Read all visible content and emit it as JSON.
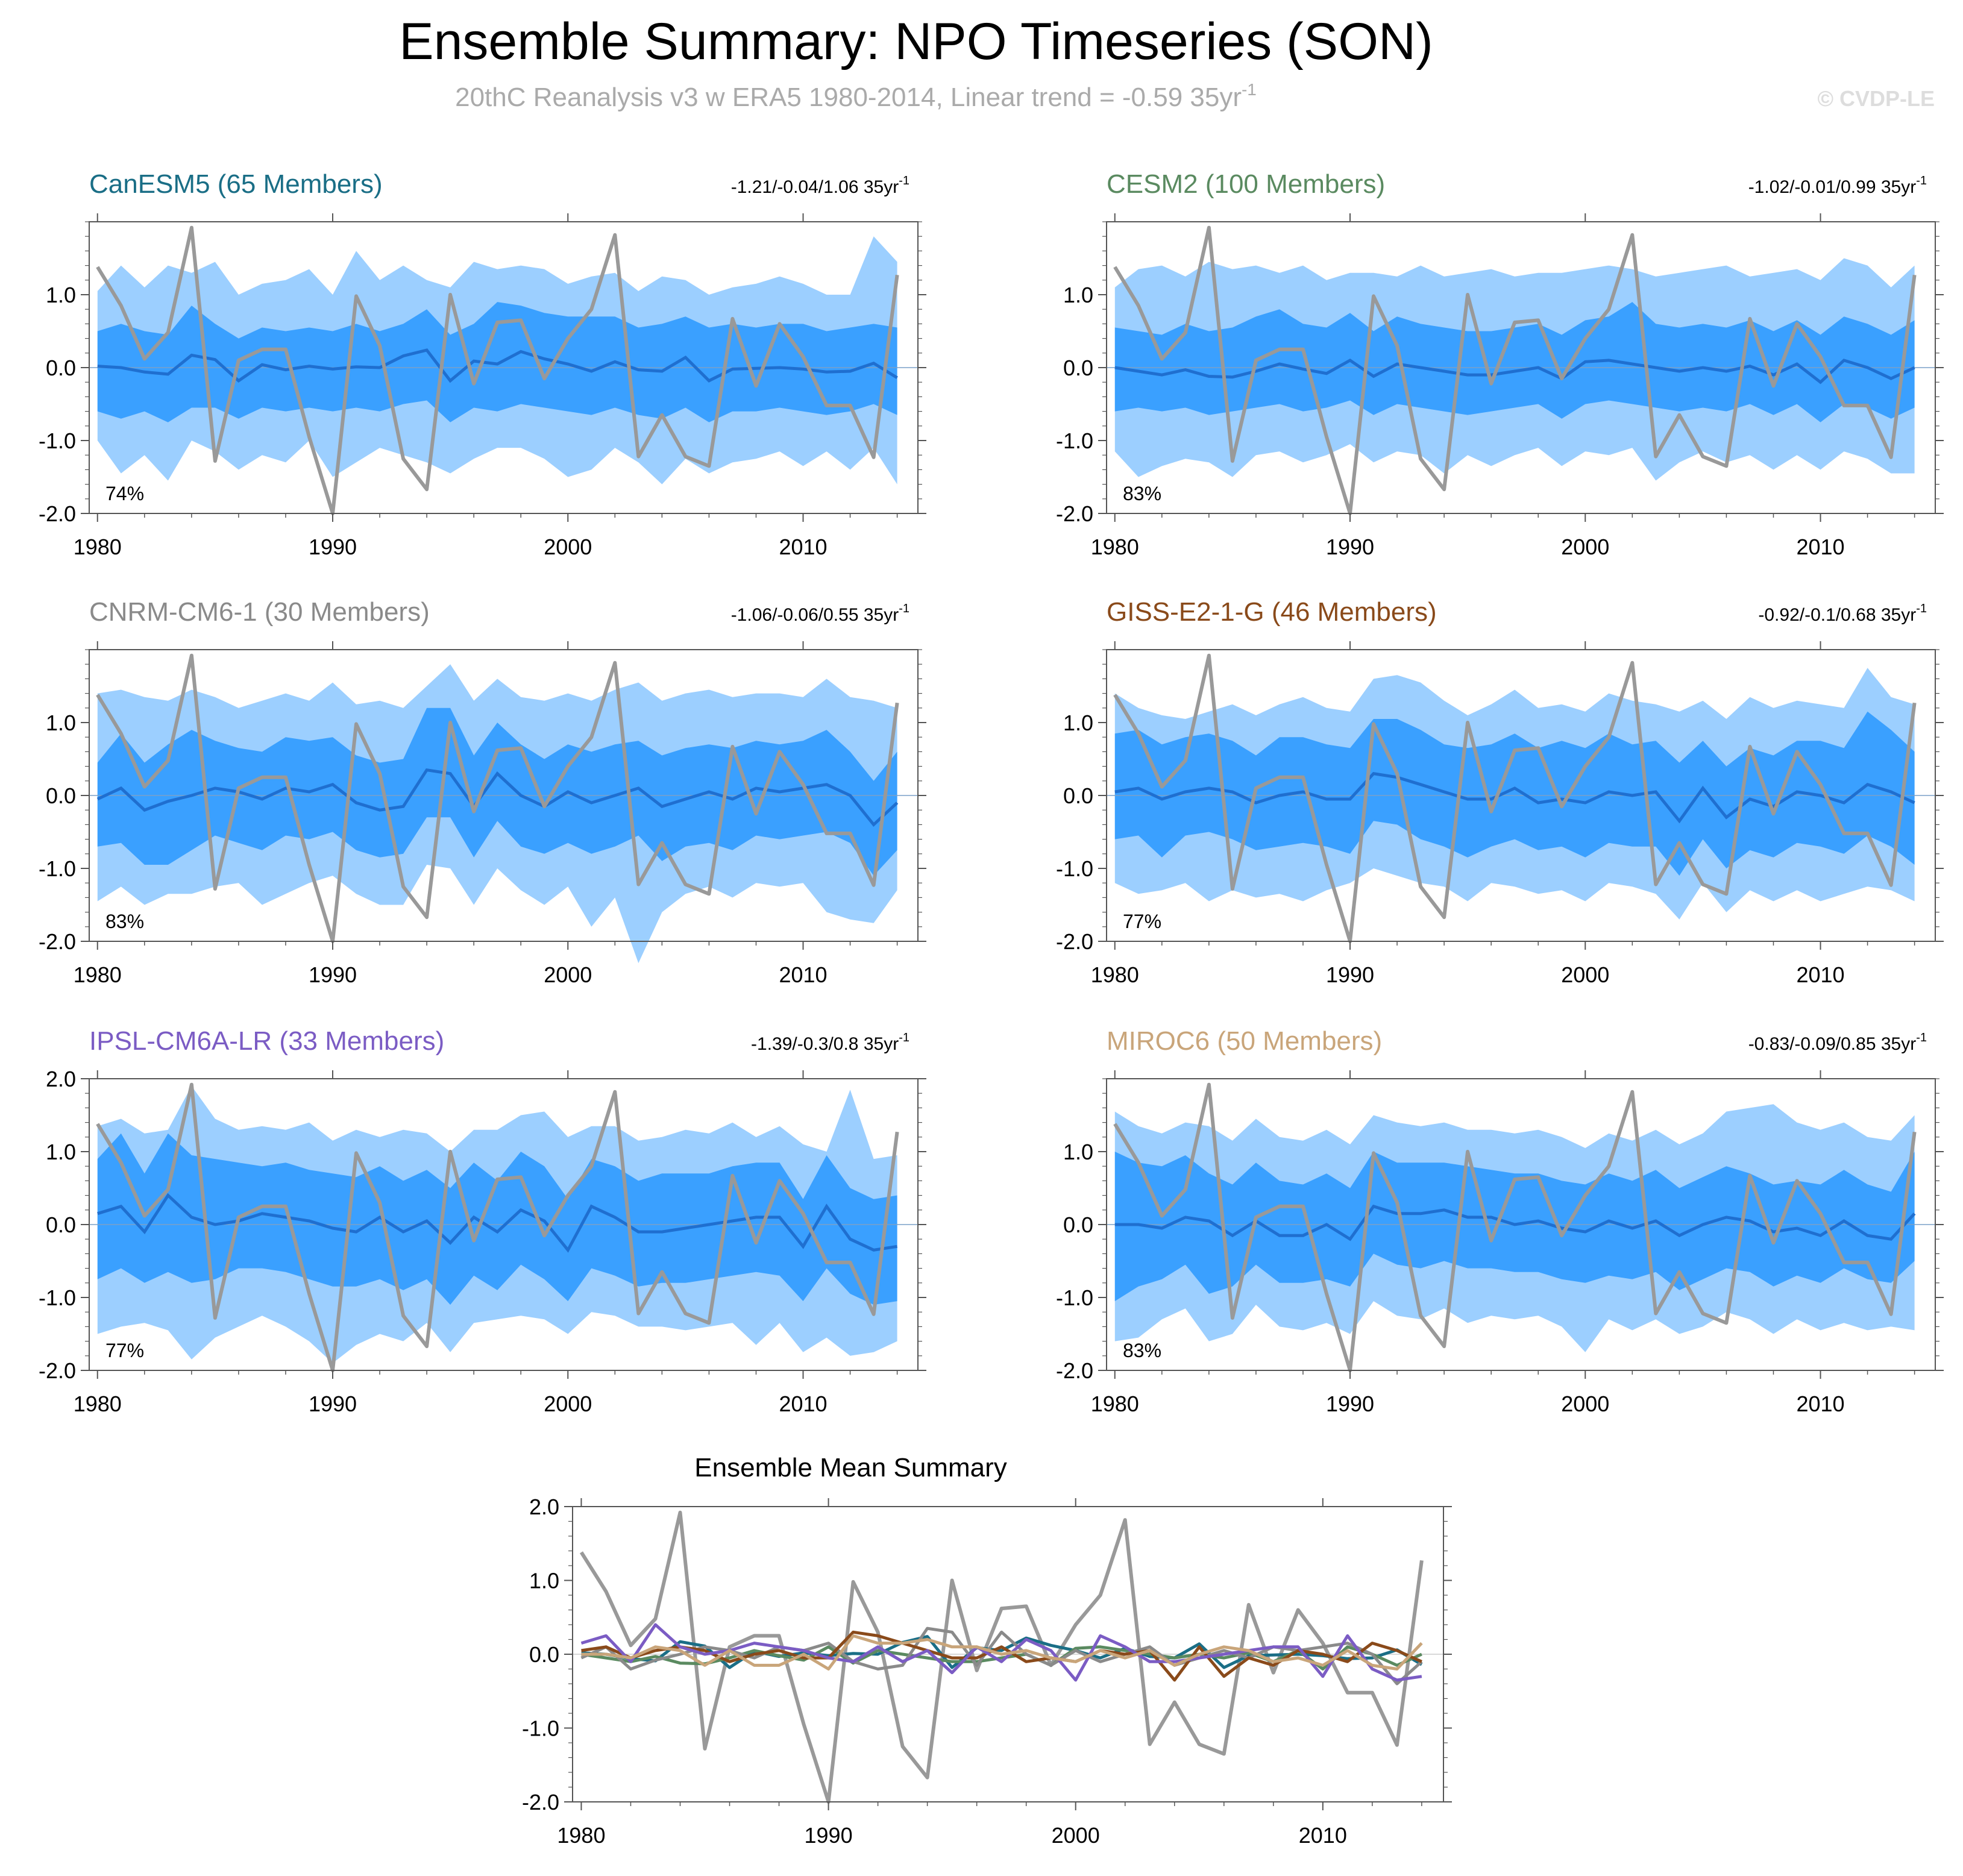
{
  "figure": {
    "title": "Ensemble Summary: NPO Timeseries (SON)",
    "subtitle": "20thC Reanalysis v3 w ERA5 1980-2014, Linear trend = -0.59 35yr",
    "subtitle_sup": "-1",
    "watermark": "© CVDP-LE"
  },
  "colors": {
    "outer_band": "#9ccfff",
    "inner_band": "#3aa0ff",
    "ens_mean": "#1f6fd0",
    "observed": "#999999",
    "axis": "#555555"
  },
  "chart_data": [
    {
      "id": "canesm5",
      "type": "area",
      "title": "CanESM5 (65 Members)",
      "title_color": "#1a6e86",
      "trend": "-1.21/-0.04/1.06 35yr",
      "trend_sup": "-1",
      "pct": "74%",
      "x_start": 1980,
      "xticks": [
        "1980",
        "1990",
        "2000",
        "2010"
      ],
      "yticks": [
        "1.0",
        "0.0",
        "-1.0",
        "-2.0"
      ],
      "ylim": [
        -2.0,
        2.0
      ],
      "mean": [
        0.02,
        0.0,
        -0.06,
        -0.09,
        0.17,
        0.11,
        -0.18,
        0.04,
        -0.03,
        0.02,
        -0.02,
        0.01,
        0.0,
        0.16,
        0.24,
        -0.18,
        0.09,
        0.05,
        0.22,
        0.12,
        0.05,
        -0.05,
        0.08,
        -0.03,
        -0.05,
        0.14,
        -0.18,
        -0.02,
        -0.01,
        0.0,
        -0.02,
        -0.06,
        -0.05,
        0.06,
        -0.14
      ],
      "p25": [
        -0.6,
        -0.7,
        -0.6,
        -0.75,
        -0.55,
        -0.55,
        -0.7,
        -0.55,
        -0.6,
        -0.55,
        -0.6,
        -0.55,
        -0.6,
        -0.5,
        -0.45,
        -0.75,
        -0.55,
        -0.6,
        -0.5,
        -0.55,
        -0.6,
        -0.65,
        -0.55,
        -0.65,
        -0.7,
        -0.55,
        -0.75,
        -0.6,
        -0.6,
        -0.55,
        -0.6,
        -0.65,
        -0.6,
        -0.5,
        -0.65
      ],
      "p75": [
        0.5,
        0.6,
        0.5,
        0.45,
        0.85,
        0.6,
        0.4,
        0.55,
        0.5,
        0.55,
        0.5,
        0.6,
        0.5,
        0.6,
        0.8,
        0.45,
        0.6,
        0.9,
        0.85,
        0.75,
        0.7,
        0.7,
        0.7,
        0.55,
        0.6,
        0.7,
        0.55,
        0.6,
        0.55,
        0.6,
        0.6,
        0.5,
        0.55,
        0.6,
        0.55
      ],
      "p5": [
        -1.0,
        -1.45,
        -1.2,
        -1.55,
        -1.0,
        -1.15,
        -1.4,
        -1.2,
        -1.3,
        -1.0,
        -1.5,
        -1.3,
        -1.1,
        -1.2,
        -1.3,
        -1.45,
        -1.25,
        -1.1,
        -1.1,
        -1.25,
        -1.5,
        -1.4,
        -1.1,
        -1.3,
        -1.6,
        -1.25,
        -1.45,
        -1.3,
        -1.25,
        -1.15,
        -1.35,
        -1.15,
        -1.4,
        -1.1,
        -1.6
      ],
      "p95": [
        1.05,
        1.4,
        1.1,
        1.4,
        1.3,
        1.45,
        1.0,
        1.15,
        1.2,
        1.35,
        1.0,
        1.6,
        1.2,
        1.4,
        1.2,
        1.1,
        1.45,
        1.35,
        1.4,
        1.35,
        1.15,
        1.25,
        1.3,
        1.05,
        1.25,
        1.2,
        1.0,
        1.1,
        1.15,
        1.25,
        1.15,
        1.0,
        1.0,
        1.8,
        1.45
      ]
    },
    {
      "id": "cesm2",
      "type": "area",
      "title": "CESM2 (100 Members)",
      "title_color": "#5a8a60",
      "trend": "-1.02/-0.01/0.99 35yr",
      "trend_sup": "-1",
      "pct": "83%",
      "x_start": 1980,
      "xticks": [
        "1980",
        "1990",
        "2000",
        "2010"
      ],
      "yticks": [
        "1.0",
        "0.0",
        "-1.0",
        "-2.0"
      ],
      "ylim": [
        -2.0,
        2.0
      ],
      "mean": [
        0.0,
        -0.05,
        -0.1,
        -0.03,
        -0.12,
        -0.13,
        -0.05,
        0.05,
        -0.02,
        -0.08,
        0.1,
        -0.12,
        0.05,
        0.0,
        -0.05,
        -0.1,
        -0.1,
        -0.05,
        0.0,
        -0.15,
        0.08,
        0.1,
        0.05,
        0.0,
        -0.05,
        0.0,
        -0.05,
        0.02,
        -0.1,
        0.05,
        -0.2,
        0.1,
        0.0,
        -0.15,
        0.0
      ],
      "p25": [
        -0.6,
        -0.55,
        -0.6,
        -0.55,
        -0.65,
        -0.6,
        -0.55,
        -0.5,
        -0.6,
        -0.55,
        -0.45,
        -0.65,
        -0.5,
        -0.55,
        -0.6,
        -0.65,
        -0.6,
        -0.55,
        -0.5,
        -0.7,
        -0.5,
        -0.45,
        -0.5,
        -0.55,
        -0.6,
        -0.55,
        -0.6,
        -0.5,
        -0.65,
        -0.5,
        -0.75,
        -0.5,
        -0.55,
        -0.7,
        -0.55
      ],
      "p75": [
        0.55,
        0.5,
        0.45,
        0.6,
        0.5,
        0.55,
        0.7,
        0.8,
        0.6,
        0.55,
        0.75,
        0.5,
        0.7,
        0.6,
        0.55,
        0.5,
        0.5,
        0.55,
        0.6,
        0.45,
        0.65,
        0.7,
        0.9,
        0.6,
        0.55,
        0.6,
        0.55,
        0.65,
        0.5,
        0.65,
        0.45,
        0.7,
        0.6,
        0.45,
        0.65
      ],
      "p5": [
        -1.15,
        -1.5,
        -1.35,
        -1.25,
        -1.3,
        -1.5,
        -1.2,
        -1.15,
        -1.3,
        -1.2,
        -1.05,
        -1.3,
        -1.15,
        -1.2,
        -1.45,
        -1.2,
        -1.35,
        -1.2,
        -1.1,
        -1.35,
        -1.15,
        -1.2,
        -1.1,
        -1.55,
        -1.3,
        -1.15,
        -1.3,
        -1.2,
        -1.4,
        -1.2,
        -1.4,
        -1.15,
        -1.25,
        -1.45,
        -1.45
      ],
      "p95": [
        1.1,
        1.35,
        1.4,
        1.25,
        1.45,
        1.35,
        1.4,
        1.3,
        1.4,
        1.2,
        1.3,
        1.3,
        1.25,
        1.4,
        1.25,
        1.3,
        1.35,
        1.25,
        1.3,
        1.3,
        1.35,
        1.4,
        1.35,
        1.25,
        1.3,
        1.35,
        1.4,
        1.25,
        1.3,
        1.35,
        1.2,
        1.5,
        1.4,
        1.1,
        1.4
      ]
    },
    {
      "id": "cnrm",
      "type": "area",
      "title": "CNRM-CM6-1 (30 Members)",
      "title_color": "#8a8a8a",
      "trend": "-1.06/-0.06/0.55 35yr",
      "trend_sup": "-1",
      "pct": "83%",
      "x_start": 1980,
      "xticks": [
        "1980",
        "1990",
        "2000",
        "2010"
      ],
      "yticks": [
        "1.0",
        "0.0",
        "-1.0",
        "-2.0"
      ],
      "ylim": [
        -2.0,
        2.0
      ],
      "mean": [
        -0.05,
        0.1,
        -0.2,
        -0.08,
        0.0,
        0.1,
        0.05,
        -0.05,
        0.1,
        0.05,
        0.15,
        -0.1,
        -0.2,
        -0.15,
        0.35,
        0.3,
        -0.15,
        0.3,
        0.0,
        -0.15,
        0.05,
        -0.1,
        0.0,
        0.1,
        -0.15,
        -0.05,
        0.05,
        -0.05,
        0.1,
        0.05,
        0.1,
        0.15,
        0.0,
        -0.4,
        -0.1
      ],
      "p25": [
        -0.7,
        -0.65,
        -0.95,
        -0.95,
        -0.75,
        -0.55,
        -0.65,
        -0.75,
        -0.55,
        -0.6,
        -0.5,
        -0.75,
        -0.85,
        -0.8,
        -0.3,
        -0.3,
        -0.85,
        -0.35,
        -0.7,
        -0.8,
        -0.65,
        -0.8,
        -0.7,
        -0.55,
        -0.9,
        -0.7,
        -0.65,
        -0.75,
        -0.55,
        -0.6,
        -0.55,
        -0.5,
        -0.65,
        -1.1,
        -0.75
      ],
      "p75": [
        0.45,
        0.85,
        0.45,
        0.7,
        0.9,
        0.75,
        0.65,
        0.6,
        0.8,
        0.75,
        0.8,
        0.55,
        0.45,
        0.5,
        1.2,
        1.2,
        0.55,
        1.0,
        0.7,
        0.5,
        0.7,
        0.6,
        0.7,
        0.75,
        0.55,
        0.65,
        0.7,
        0.65,
        0.75,
        0.7,
        0.75,
        0.9,
        0.6,
        0.2,
        0.6
      ],
      "p5": [
        -1.45,
        -1.25,
        -1.5,
        -1.35,
        -1.35,
        -1.25,
        -1.2,
        -1.5,
        -1.35,
        -1.2,
        -1.1,
        -1.35,
        -1.5,
        -1.5,
        -0.95,
        -1.0,
        -1.5,
        -1.0,
        -1.3,
        -1.5,
        -1.25,
        -1.8,
        -1.4,
        -2.3,
        -1.6,
        -1.35,
        -1.25,
        -1.4,
        -1.2,
        -1.25,
        -1.2,
        -1.6,
        -1.7,
        -1.75,
        -1.3
      ],
      "p95": [
        1.4,
        1.45,
        1.35,
        1.3,
        1.45,
        1.35,
        1.2,
        1.3,
        1.4,
        1.3,
        1.55,
        1.25,
        1.3,
        1.2,
        1.5,
        1.8,
        1.3,
        1.6,
        1.35,
        1.3,
        1.4,
        1.3,
        1.45,
        1.55,
        1.3,
        1.4,
        1.45,
        1.35,
        1.4,
        1.4,
        1.35,
        1.6,
        1.35,
        1.3,
        1.2
      ]
    },
    {
      "id": "giss",
      "type": "area",
      "title": "GISS-E2-1-G (46 Members)",
      "title_color": "#8a4a1a",
      "trend": "-0.92/-0.1/0.68 35yr",
      "trend_sup": "-1",
      "pct": "77%",
      "x_start": 1980,
      "xticks": [
        "1980",
        "1990",
        "2000",
        "2010"
      ],
      "yticks": [
        "1.0",
        "0.0",
        "-1.0",
        "-2.0"
      ],
      "ylim": [
        -2.0,
        2.0
      ],
      "mean": [
        0.05,
        0.1,
        -0.05,
        0.05,
        0.1,
        0.05,
        -0.1,
        0.0,
        0.05,
        -0.05,
        -0.05,
        0.3,
        0.25,
        0.15,
        0.05,
        -0.05,
        -0.05,
        0.1,
        -0.1,
        -0.05,
        -0.1,
        0.05,
        0.0,
        0.05,
        -0.35,
        0.1,
        -0.3,
        -0.05,
        -0.15,
        0.05,
        0.0,
        -0.1,
        0.15,
        0.05,
        -0.1
      ],
      "p25": [
        -0.6,
        -0.55,
        -0.85,
        -0.55,
        -0.5,
        -0.6,
        -0.75,
        -0.7,
        -0.65,
        -0.7,
        -0.8,
        -0.35,
        -0.4,
        -0.6,
        -0.7,
        -0.85,
        -0.7,
        -0.6,
        -0.75,
        -0.7,
        -0.85,
        -0.65,
        -0.7,
        -0.7,
        -1.1,
        -0.6,
        -1.0,
        -0.75,
        -0.85,
        -0.65,
        -0.7,
        -0.8,
        -0.55,
        -0.7,
        -0.95
      ],
      "p75": [
        0.85,
        0.9,
        0.7,
        0.8,
        0.85,
        0.75,
        0.55,
        0.8,
        0.8,
        0.7,
        0.65,
        1.05,
        1.05,
        0.9,
        0.7,
        0.65,
        0.7,
        0.85,
        0.65,
        0.75,
        0.65,
        0.85,
        0.7,
        0.75,
        0.45,
        0.75,
        0.4,
        0.65,
        0.55,
        0.75,
        0.75,
        0.65,
        1.15,
        0.9,
        0.6
      ],
      "p5": [
        -1.2,
        -1.35,
        -1.3,
        -1.2,
        -1.45,
        -1.3,
        -1.4,
        -1.35,
        -1.45,
        -1.3,
        -1.2,
        -1.0,
        -1.1,
        -1.2,
        -1.25,
        -1.45,
        -1.2,
        -1.25,
        -1.35,
        -1.3,
        -1.45,
        -1.2,
        -1.25,
        -1.35,
        -1.7,
        -1.2,
        -1.6,
        -1.3,
        -1.45,
        -1.3,
        -1.45,
        -1.35,
        -1.25,
        -1.3,
        -1.45
      ],
      "p95": [
        1.4,
        1.2,
        1.1,
        1.05,
        1.15,
        1.25,
        1.1,
        1.25,
        1.35,
        1.2,
        1.15,
        1.6,
        1.65,
        1.55,
        1.3,
        1.1,
        1.25,
        1.45,
        1.2,
        1.25,
        1.15,
        1.4,
        1.3,
        1.25,
        1.15,
        1.3,
        1.05,
        1.35,
        1.2,
        1.3,
        1.25,
        1.2,
        1.75,
        1.35,
        1.25
      ]
    },
    {
      "id": "ipsl",
      "type": "area",
      "title": "IPSL-CM6A-LR (33 Members)",
      "title_color": "#7b5cc4",
      "trend": "-1.39/-0.3/0.8 35yr",
      "trend_sup": "-1",
      "pct": "77%",
      "x_start": 1980,
      "xticks": [
        "1980",
        "1990",
        "2000",
        "2010"
      ],
      "yticks": [
        "2.0",
        "1.0",
        "0.0",
        "-1.0",
        "-2.0"
      ],
      "ylim": [
        -2.0,
        2.0
      ],
      "mean": [
        0.15,
        0.25,
        -0.1,
        0.4,
        0.1,
        0.0,
        0.05,
        0.15,
        0.1,
        0.05,
        -0.05,
        -0.1,
        0.1,
        -0.1,
        0.05,
        -0.25,
        0.1,
        -0.1,
        0.2,
        0.05,
        -0.35,
        0.25,
        0.1,
        -0.1,
        -0.1,
        -0.05,
        0.0,
        0.05,
        0.1,
        0.1,
        -0.3,
        0.25,
        -0.2,
        -0.35,
        -0.3
      ],
      "p25": [
        -0.75,
        -0.6,
        -0.8,
        -0.65,
        -0.8,
        -0.75,
        -0.6,
        -0.6,
        -0.65,
        -0.75,
        -0.85,
        -0.85,
        -0.75,
        -0.9,
        -0.75,
        -1.1,
        -0.7,
        -0.9,
        -0.55,
        -0.75,
        -1.05,
        -0.6,
        -0.7,
        -0.85,
        -0.8,
        -0.8,
        -0.75,
        -0.7,
        -0.65,
        -0.7,
        -1.05,
        -0.6,
        -0.95,
        -1.1,
        -1.05
      ],
      "p75": [
        0.9,
        1.25,
        0.7,
        1.25,
        0.95,
        0.9,
        0.85,
        0.8,
        0.85,
        0.75,
        0.7,
        0.65,
        0.8,
        0.6,
        0.75,
        0.5,
        0.85,
        0.6,
        1.0,
        0.8,
        0.35,
        0.9,
        0.8,
        0.6,
        0.7,
        0.7,
        0.7,
        0.8,
        0.85,
        0.85,
        0.35,
        0.95,
        0.5,
        0.35,
        0.4
      ],
      "p5": [
        -1.5,
        -1.4,
        -1.35,
        -1.45,
        -1.85,
        -1.55,
        -1.4,
        -1.25,
        -1.4,
        -1.6,
        -1.9,
        -1.65,
        -1.5,
        -1.6,
        -1.35,
        -1.75,
        -1.35,
        -1.3,
        -1.25,
        -1.3,
        -1.5,
        -1.2,
        -1.25,
        -1.4,
        -1.4,
        -1.45,
        -1.4,
        -1.35,
        -1.65,
        -1.35,
        -1.75,
        -1.55,
        -1.8,
        -1.75,
        -1.6
      ],
      "p95": [
        1.35,
        1.45,
        1.25,
        1.3,
        1.9,
        1.45,
        1.3,
        1.35,
        1.3,
        1.4,
        1.15,
        1.3,
        1.2,
        1.3,
        1.25,
        1.0,
        1.3,
        1.3,
        1.5,
        1.55,
        1.2,
        1.35,
        1.35,
        1.15,
        1.2,
        1.3,
        1.25,
        1.4,
        1.2,
        1.35,
        1.1,
        1.0,
        1.85,
        0.9,
        0.95
      ]
    },
    {
      "id": "miroc6",
      "type": "area",
      "title": "MIROC6 (50 Members)",
      "title_color": "#c9a57a",
      "trend": "-0.83/-0.09/0.85 35yr",
      "trend_sup": "-1",
      "pct": "83%",
      "x_start": 1980,
      "xticks": [
        "1980",
        "1990",
        "2000",
        "2010"
      ],
      "yticks": [
        "1.0",
        "0.0",
        "-1.0",
        "-2.0"
      ],
      "ylim": [
        -2.0,
        2.0
      ],
      "mean": [
        0.0,
        0.0,
        -0.05,
        0.1,
        0.05,
        -0.15,
        0.05,
        -0.15,
        -0.15,
        0.0,
        -0.2,
        0.25,
        0.15,
        0.15,
        0.2,
        0.1,
        0.1,
        0.0,
        0.05,
        -0.05,
        -0.1,
        0.05,
        -0.05,
        0.05,
        -0.15,
        0.0,
        0.1,
        0.05,
        -0.1,
        -0.05,
        -0.15,
        0.05,
        -0.15,
        -0.2,
        0.15
      ],
      "p25": [
        -1.05,
        -0.85,
        -0.75,
        -0.55,
        -0.95,
        -0.85,
        -0.55,
        -0.8,
        -0.8,
        -0.75,
        -0.85,
        -0.4,
        -0.55,
        -0.6,
        -0.5,
        -0.6,
        -0.6,
        -0.65,
        -0.65,
        -0.75,
        -0.8,
        -0.7,
        -0.75,
        -0.65,
        -0.9,
        -0.75,
        -0.6,
        -0.65,
        -0.85,
        -0.7,
        -0.8,
        -0.6,
        -0.75,
        -0.8,
        -0.5
      ],
      "p75": [
        1.0,
        0.85,
        0.8,
        0.95,
        0.7,
        0.55,
        0.85,
        0.6,
        0.55,
        0.7,
        0.5,
        1.0,
        0.85,
        0.85,
        0.85,
        0.8,
        0.75,
        0.7,
        0.7,
        0.6,
        0.55,
        0.7,
        0.6,
        0.75,
        0.5,
        0.65,
        0.8,
        0.7,
        0.55,
        0.6,
        0.55,
        0.75,
        0.55,
        0.45,
        1.0
      ],
      "p5": [
        -1.6,
        -1.55,
        -1.3,
        -1.15,
        -1.6,
        -1.5,
        -1.1,
        -1.4,
        -1.45,
        -1.35,
        -1.5,
        -1.05,
        -1.25,
        -1.3,
        -1.15,
        -1.35,
        -1.25,
        -1.3,
        -1.25,
        -1.4,
        -1.75,
        -1.3,
        -1.45,
        -1.3,
        -1.5,
        -1.4,
        -1.2,
        -1.3,
        -1.5,
        -1.3,
        -1.45,
        -1.35,
        -1.45,
        -1.4,
        -1.45
      ],
      "p95": [
        1.55,
        1.35,
        1.25,
        1.4,
        1.35,
        1.15,
        1.45,
        1.2,
        1.15,
        1.3,
        1.1,
        1.5,
        1.4,
        1.35,
        1.4,
        1.3,
        1.3,
        1.25,
        1.3,
        1.2,
        1.05,
        1.25,
        1.15,
        1.3,
        1.1,
        1.25,
        1.55,
        1.6,
        1.65,
        1.4,
        1.3,
        1.4,
        1.2,
        1.15,
        1.5
      ]
    },
    {
      "id": "ensemble_mean",
      "type": "line",
      "title": "Ensemble Mean Summary",
      "x_start": 1980,
      "xticks": [
        "1980",
        "1990",
        "2000",
        "2010"
      ],
      "yticks": [
        "2.0",
        "1.0",
        "0.0",
        "-1.0",
        "-2.0"
      ],
      "ylim": [
        -2.0,
        2.0
      ],
      "series_ref": [
        "canesm5",
        "cesm2",
        "cnrm",
        "giss",
        "ipsl",
        "miroc6"
      ],
      "series_colors": [
        "#1a6e86",
        "#5a8a60",
        "#8a8a8a",
        "#8a4a1a",
        "#7b5cc4",
        "#c9a57a"
      ]
    }
  ],
  "observed": {
    "name": "20thC Reanalysis v3 w ERA5",
    "values": [
      1.38,
      0.85,
      0.12,
      0.48,
      1.92,
      -1.28,
      0.1,
      0.25,
      0.25,
      -0.95,
      -2.0,
      0.98,
      0.3,
      -1.25,
      -1.67,
      1.0,
      -0.22,
      0.62,
      0.65,
      -0.15,
      0.4,
      0.8,
      1.82,
      -1.22,
      -0.65,
      -1.22,
      -1.35,
      0.67,
      -0.25,
      0.6,
      0.15,
      -0.52,
      -0.52,
      -1.23,
      1.27
    ]
  }
}
